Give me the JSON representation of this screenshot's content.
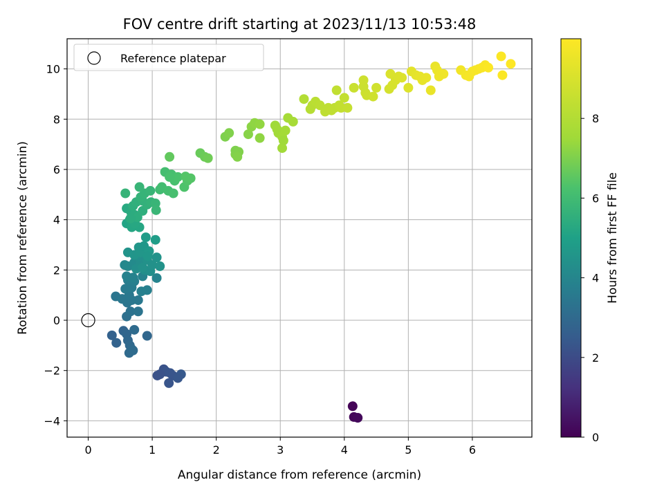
{
  "chart_data": {
    "type": "scatter",
    "title": "FOV centre drift starting at 2023/11/13 10:53:48",
    "xlabel": "Angular distance from reference (arcmin)",
    "ylabel": "Rotation from reference (arcmin)",
    "xlim": [
      -0.33,
      6.93
    ],
    "ylim": [
      -4.65,
      11.2
    ],
    "xticks": [
      0,
      1,
      2,
      3,
      4,
      5,
      6
    ],
    "yticks": [
      -4,
      -2,
      0,
      2,
      4,
      6,
      8,
      10
    ],
    "grid": true,
    "legend": {
      "placement": "top-left",
      "entries": [
        "Reference platepar"
      ]
    },
    "reference_point": {
      "x": 0,
      "y": 0
    },
    "colorbar": {
      "label": "Hours from first FF file",
      "range": [
        0,
        10
      ],
      "ticks": [
        0,
        2,
        4,
        6,
        8
      ],
      "colormap": "viridis"
    },
    "points": [
      [
        4.13,
        -3.42,
        0.1
      ],
      [
        4.15,
        -3.85,
        0.15
      ],
      [
        4.21,
        -3.88,
        0.2
      ],
      [
        1.18,
        -1.95,
        2.2
      ],
      [
        1.22,
        -2.05,
        2.25
      ],
      [
        1.28,
        -2.1,
        2.3
      ],
      [
        1.12,
        -2.15,
        2.2
      ],
      [
        1.32,
        -2.2,
        2.3
      ],
      [
        1.45,
        -2.15,
        2.4
      ],
      [
        1.4,
        -2.3,
        2.35
      ],
      [
        1.26,
        -2.5,
        2.3
      ],
      [
        1.08,
        -2.2,
        2.2
      ],
      [
        0.37,
        -0.6,
        2.7
      ],
      [
        0.44,
        -0.9,
        2.75
      ],
      [
        0.55,
        -0.42,
        2.8
      ],
      [
        0.6,
        -0.55,
        2.85
      ],
      [
        0.62,
        -0.8,
        2.9
      ],
      [
        0.65,
        -1.0,
        2.95
      ],
      [
        0.68,
        -1.15,
        3.0
      ],
      [
        0.64,
        -1.3,
        3.0
      ],
      [
        0.7,
        -1.2,
        3.05
      ],
      [
        0.72,
        -0.38,
        3.05
      ],
      [
        0.92,
        -0.62,
        2.9
      ],
      [
        0.6,
        0.15,
        3.2
      ],
      [
        0.66,
        0.35,
        3.3
      ],
      [
        0.78,
        0.35,
        3.35
      ],
      [
        0.61,
        0.7,
        3.4
      ],
      [
        0.68,
        0.8,
        3.45
      ],
      [
        0.78,
        0.8,
        3.5
      ],
      [
        0.43,
        0.95,
        3.4
      ],
      [
        0.53,
        0.85,
        3.45
      ],
      [
        0.64,
        1.0,
        3.5
      ],
      [
        0.58,
        1.25,
        3.6
      ],
      [
        0.68,
        1.3,
        3.65
      ],
      [
        0.62,
        1.6,
        3.7
      ],
      [
        0.72,
        1.55,
        3.75
      ],
      [
        0.92,
        1.2,
        3.8
      ],
      [
        0.83,
        1.15,
        3.8
      ],
      [
        0.6,
        1.75,
        3.85
      ],
      [
        0.85,
        1.75,
        3.9
      ],
      [
        0.7,
        1.7,
        3.85
      ],
      [
        1.07,
        1.68,
        3.9
      ],
      [
        0.57,
        2.2,
        4.05
      ],
      [
        0.62,
        2.15,
        4.1
      ],
      [
        0.72,
        2.3,
        4.15
      ],
      [
        0.78,
        2.45,
        4.2
      ],
      [
        0.82,
        2.3,
        4.25
      ],
      [
        0.88,
        2.0,
        4.3
      ],
      [
        0.97,
        1.95,
        4.35
      ],
      [
        0.75,
        2.05,
        4.3
      ],
      [
        0.8,
        2.55,
        4.35
      ],
      [
        0.92,
        2.4,
        4.4
      ],
      [
        1.0,
        2.2,
        4.4
      ],
      [
        1.12,
        2.15,
        4.45
      ],
      [
        1.07,
        2.5,
        4.5
      ],
      [
        0.62,
        2.7,
        4.5
      ],
      [
        0.72,
        2.6,
        4.55
      ],
      [
        0.82,
        2.7,
        4.6
      ],
      [
        0.79,
        2.9,
        4.6
      ],
      [
        0.87,
        2.95,
        4.65
      ],
      [
        0.95,
        2.75,
        4.7
      ],
      [
        0.93,
        2.55,
        4.65
      ],
      [
        0.9,
        3.3,
        4.8
      ],
      [
        1.05,
        3.2,
        4.85
      ],
      [
        0.85,
        2.1,
        4.4
      ],
      [
        0.6,
        3.85,
        5.1
      ],
      [
        0.65,
        4.0,
        5.15
      ],
      [
        0.68,
        3.7,
        5.2
      ],
      [
        0.8,
        3.7,
        5.2
      ],
      [
        0.73,
        3.85,
        5.25
      ],
      [
        0.6,
        4.45,
        5.3
      ],
      [
        0.67,
        4.3,
        5.35
      ],
      [
        0.72,
        4.2,
        5.4
      ],
      [
        0.77,
        4.1,
        5.45
      ],
      [
        0.85,
        4.35,
        5.5
      ],
      [
        0.7,
        4.55,
        5.5
      ],
      [
        0.75,
        4.7,
        5.55
      ],
      [
        0.85,
        4.75,
        5.6
      ],
      [
        0.92,
        4.6,
        5.6
      ],
      [
        0.98,
        4.7,
        5.65
      ],
      [
        0.82,
        4.9,
        5.65
      ],
      [
        0.88,
        5.05,
        5.7
      ],
      [
        0.97,
        5.15,
        5.75
      ],
      [
        0.8,
        5.3,
        5.75
      ],
      [
        0.58,
        5.05,
        5.7
      ],
      [
        1.05,
        4.65,
        5.75
      ],
      [
        1.06,
        4.38,
        5.8
      ],
      [
        0.66,
        4.05,
        5.4
      ],
      [
        1.12,
        5.2,
        6.0
      ],
      [
        1.15,
        5.3,
        6.05
      ],
      [
        1.2,
        5.9,
        6.1
      ],
      [
        1.3,
        5.8,
        6.15
      ],
      [
        1.35,
        5.55,
        6.2
      ],
      [
        1.25,
        5.15,
        6.1
      ],
      [
        1.33,
        5.05,
        6.15
      ],
      [
        1.4,
        5.7,
        6.25
      ],
      [
        1.5,
        5.3,
        6.3
      ],
      [
        1.55,
        5.55,
        6.35
      ],
      [
        1.6,
        5.65,
        6.4
      ],
      [
        1.52,
        5.72,
        6.4
      ],
      [
        1.27,
        5.7,
        6.2
      ],
      [
        1.27,
        6.5,
        6.6
      ],
      [
        1.75,
        6.65,
        6.7
      ],
      [
        1.82,
        6.5,
        6.75
      ],
      [
        1.87,
        6.45,
        6.8
      ],
      [
        2.14,
        7.3,
        7.0
      ],
      [
        2.2,
        7.45,
        7.05
      ],
      [
        2.3,
        6.75,
        7.0
      ],
      [
        2.35,
        6.7,
        7.05
      ],
      [
        2.3,
        6.6,
        7.05
      ],
      [
        2.33,
        6.5,
        7.1
      ],
      [
        2.5,
        7.4,
        7.15
      ],
      [
        2.55,
        7.7,
        7.2
      ],
      [
        2.6,
        7.85,
        7.25
      ],
      [
        2.68,
        7.8,
        7.3
      ],
      [
        2.68,
        7.25,
        7.25
      ],
      [
        2.92,
        7.75,
        7.5
      ],
      [
        2.95,
        7.6,
        7.55
      ],
      [
        2.97,
        7.45,
        7.55
      ],
      [
        3.03,
        7.3,
        7.6
      ],
      [
        3.08,
        7.55,
        7.6
      ],
      [
        3.12,
        8.05,
        7.65
      ],
      [
        3.2,
        7.9,
        7.7
      ],
      [
        3.03,
        6.85,
        7.55
      ],
      [
        3.05,
        7.15,
        7.5
      ],
      [
        3.37,
        8.8,
        8.0
      ],
      [
        3.47,
        8.4,
        8.1
      ],
      [
        3.5,
        8.55,
        8.15
      ],
      [
        3.55,
        8.7,
        8.2
      ],
      [
        3.62,
        8.55,
        8.25
      ],
      [
        3.7,
        8.3,
        8.3
      ],
      [
        3.75,
        8.45,
        8.3
      ],
      [
        3.8,
        8.35,
        8.35
      ],
      [
        3.85,
        8.45,
        8.35
      ],
      [
        3.88,
        9.15,
        8.4
      ],
      [
        3.92,
        8.55,
        8.4
      ],
      [
        3.95,
        8.45,
        8.45
      ],
      [
        4.0,
        8.85,
        8.45
      ],
      [
        4.05,
        8.45,
        8.5
      ],
      [
        4.15,
        9.25,
        8.6
      ],
      [
        4.3,
        9.3,
        8.65
      ],
      [
        4.3,
        9.55,
        8.7
      ],
      [
        4.33,
        9.05,
        8.65
      ],
      [
        4.35,
        8.95,
        8.7
      ],
      [
        4.45,
        8.9,
        8.75
      ],
      [
        4.5,
        9.25,
        8.8
      ],
      [
        4.7,
        9.2,
        8.9
      ],
      [
        4.75,
        9.35,
        8.95
      ],
      [
        4.8,
        9.55,
        9.0
      ],
      [
        4.85,
        9.7,
        9.05
      ],
      [
        4.72,
        9.8,
        9.05
      ],
      [
        4.9,
        9.65,
        9.1
      ],
      [
        5.0,
        9.25,
        9.15
      ],
      [
        5.05,
        9.9,
        9.3
      ],
      [
        5.12,
        9.75,
        9.35
      ],
      [
        5.18,
        9.7,
        9.4
      ],
      [
        5.22,
        9.55,
        9.4
      ],
      [
        5.28,
        9.65,
        9.45
      ],
      [
        5.35,
        9.15,
        9.45
      ],
      [
        5.42,
        10.1,
        9.5
      ],
      [
        5.45,
        9.95,
        9.55
      ],
      [
        5.5,
        9.75,
        9.6
      ],
      [
        5.55,
        9.8,
        9.65
      ],
      [
        5.48,
        9.7,
        9.6
      ],
      [
        5.82,
        9.95,
        9.7
      ],
      [
        5.9,
        9.75,
        9.75
      ],
      [
        5.95,
        9.7,
        9.8
      ],
      [
        6.0,
        9.9,
        9.8
      ],
      [
        6.05,
        9.95,
        9.85
      ],
      [
        6.1,
        10.0,
        9.85
      ],
      [
        6.15,
        10.05,
        9.9
      ],
      [
        6.2,
        10.15,
        9.9
      ],
      [
        6.25,
        10.05,
        9.95
      ],
      [
        6.45,
        10.5,
        9.95
      ],
      [
        6.47,
        9.75,
        9.95
      ],
      [
        6.6,
        10.2,
        10.0
      ]
    ]
  }
}
